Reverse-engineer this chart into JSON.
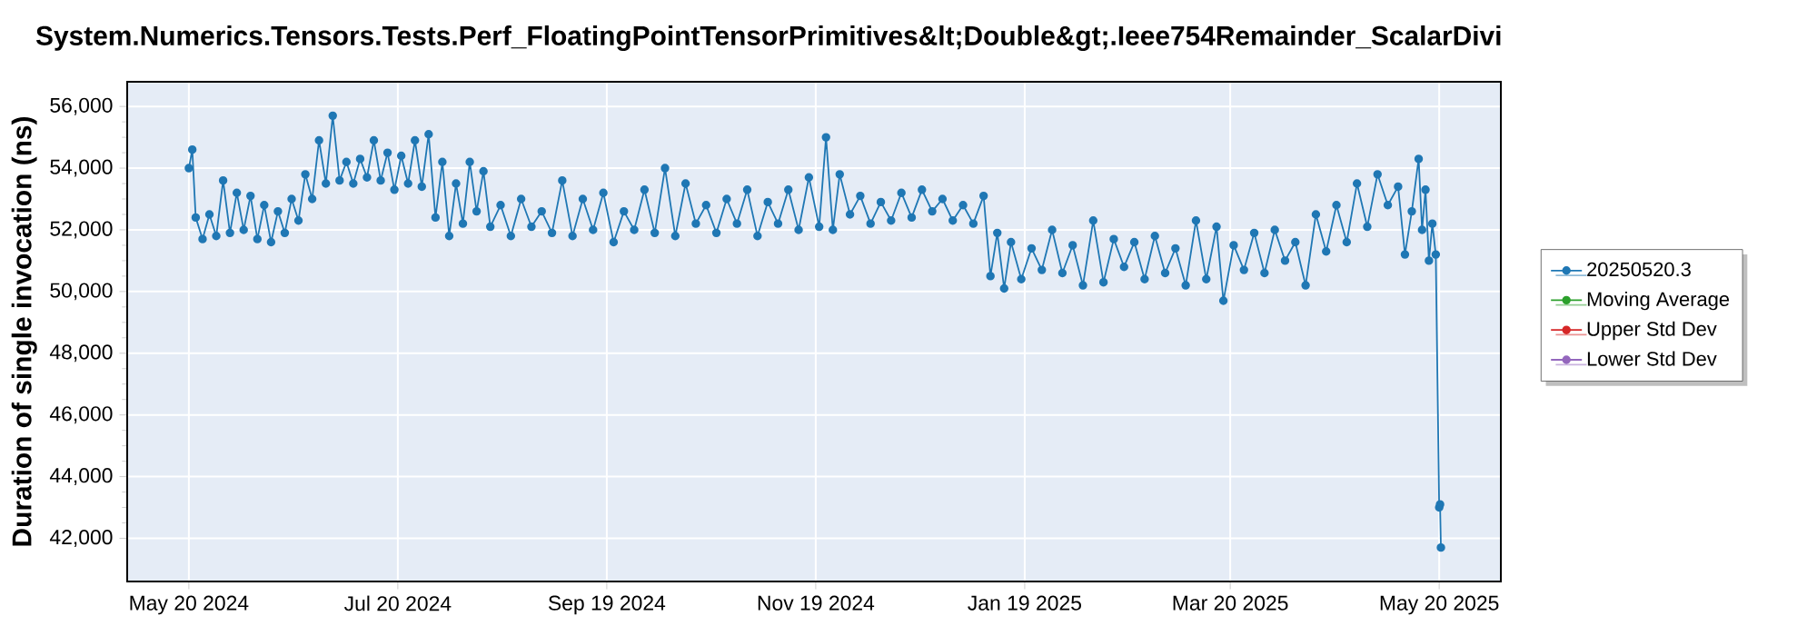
{
  "chart_data": {
    "type": "line",
    "title": "System.Numerics.Tensors.Tests.Perf_FloatingPointTensorPrimitives&lt;Double&gt;.Ieee754Remainder_ScalarDivi",
    "ylabel": "Duration of single invocation (ns)",
    "xlim": [
      "2024-05-02",
      "2025-06-07"
    ],
    "xticks": [
      {
        "value": "2024-05-20",
        "label": "May 20 2024"
      },
      {
        "value": "2024-07-20",
        "label": "Jul 20 2024"
      },
      {
        "value": "2024-09-19",
        "label": "Sep 19 2024"
      },
      {
        "value": "2024-11-19",
        "label": "Nov 19 2024"
      },
      {
        "value": "2025-01-19",
        "label": "Jan 19 2025"
      },
      {
        "value": "2025-03-20",
        "label": "Mar 20 2025"
      },
      {
        "value": "2025-05-20",
        "label": "May 20 2025"
      }
    ],
    "ylim": [
      40600,
      56800
    ],
    "yticks": [
      {
        "value": 42000,
        "label": "42,000"
      },
      {
        "value": 44000,
        "label": "44,000"
      },
      {
        "value": 46000,
        "label": "46,000"
      },
      {
        "value": 48000,
        "label": "48,000"
      },
      {
        "value": 50000,
        "label": "50,000"
      },
      {
        "value": 52000,
        "label": "52,000"
      },
      {
        "value": 54000,
        "label": "54,000"
      },
      {
        "value": 56000,
        "label": "56,000"
      }
    ],
    "grid": true,
    "legend": "right",
    "marker": "circle",
    "line_style": "solid",
    "series": [
      {
        "name": "20250520.3",
        "color": "#1f77b4",
        "x": [
          "2024-05-20",
          "2024-05-21",
          "2024-05-22",
          "2024-05-24",
          "2024-05-26",
          "2024-05-28",
          "2024-05-30",
          "2024-06-01",
          "2024-06-03",
          "2024-06-05",
          "2024-06-07",
          "2024-06-09",
          "2024-06-11",
          "2024-06-13",
          "2024-06-15",
          "2024-06-17",
          "2024-06-19",
          "2024-06-21",
          "2024-06-23",
          "2024-06-25",
          "2024-06-27",
          "2024-06-29",
          "2024-07-01",
          "2024-07-03",
          "2024-07-05",
          "2024-07-07",
          "2024-07-09",
          "2024-07-11",
          "2024-07-13",
          "2024-07-15",
          "2024-07-17",
          "2024-07-19",
          "2024-07-21",
          "2024-07-23",
          "2024-07-25",
          "2024-07-27",
          "2024-07-29",
          "2024-07-31",
          "2024-08-02",
          "2024-08-04",
          "2024-08-06",
          "2024-08-08",
          "2024-08-10",
          "2024-08-12",
          "2024-08-14",
          "2024-08-16",
          "2024-08-19",
          "2024-08-22",
          "2024-08-25",
          "2024-08-28",
          "2024-08-31",
          "2024-09-03",
          "2024-09-06",
          "2024-09-09",
          "2024-09-12",
          "2024-09-15",
          "2024-09-18",
          "2024-09-21",
          "2024-09-24",
          "2024-09-27",
          "2024-09-30",
          "2024-10-03",
          "2024-10-06",
          "2024-10-09",
          "2024-10-12",
          "2024-10-15",
          "2024-10-18",
          "2024-10-21",
          "2024-10-24",
          "2024-10-27",
          "2024-10-30",
          "2024-11-02",
          "2024-11-05",
          "2024-11-08",
          "2024-11-11",
          "2024-11-14",
          "2024-11-17",
          "2024-11-20",
          "2024-11-22",
          "2024-11-24",
          "2024-11-26",
          "2024-11-29",
          "2024-12-02",
          "2024-12-05",
          "2024-12-08",
          "2024-12-11",
          "2024-12-14",
          "2024-12-17",
          "2024-12-20",
          "2024-12-23",
          "2024-12-26",
          "2024-12-29",
          "2025-01-01",
          "2025-01-04",
          "2025-01-07",
          "2025-01-09",
          "2025-01-11",
          "2025-01-13",
          "2025-01-15",
          "2025-01-18",
          "2025-01-21",
          "2025-01-24",
          "2025-01-27",
          "2025-01-30",
          "2025-02-02",
          "2025-02-05",
          "2025-02-08",
          "2025-02-11",
          "2025-02-14",
          "2025-02-17",
          "2025-02-20",
          "2025-02-23",
          "2025-02-26",
          "2025-03-01",
          "2025-03-04",
          "2025-03-07",
          "2025-03-10",
          "2025-03-13",
          "2025-03-16",
          "2025-03-18",
          "2025-03-21",
          "2025-03-24",
          "2025-03-27",
          "2025-03-30",
          "2025-04-02",
          "2025-04-05",
          "2025-04-08",
          "2025-04-11",
          "2025-04-14",
          "2025-04-17",
          "2025-04-20",
          "2025-04-23",
          "2025-04-26",
          "2025-04-29",
          "2025-05-02",
          "2025-05-05",
          "2025-05-08",
          "2025-05-10",
          "2025-05-12",
          "2025-05-14",
          "2025-05-15",
          "2025-05-16",
          "2025-05-17",
          "2025-05-18",
          "2025-05-19",
          "2025-05-20",
          "2025-05-20T06:00",
          "2025-05-20T12:00"
        ],
        "values": [
          54000,
          54600,
          52400,
          51700,
          52500,
          51800,
          53600,
          51900,
          53200,
          52000,
          53100,
          51700,
          52800,
          51600,
          52600,
          51900,
          53000,
          52300,
          53800,
          53000,
          54900,
          53500,
          55700,
          53600,
          54200,
          53500,
          54300,
          53700,
          54900,
          53600,
          54500,
          53300,
          54400,
          53500,
          54900,
          53400,
          55100,
          52400,
          54200,
          51800,
          53500,
          52200,
          54200,
          52600,
          53900,
          52100,
          52800,
          51800,
          53000,
          52100,
          52600,
          51900,
          53600,
          51800,
          53000,
          52000,
          53200,
          51600,
          52600,
          52000,
          53300,
          51900,
          54000,
          51800,
          53500,
          52200,
          52800,
          51900,
          53000,
          52200,
          53300,
          51800,
          52900,
          52200,
          53300,
          52000,
          53700,
          52100,
          55000,
          52000,
          53800,
          52500,
          53100,
          52200,
          52900,
          52300,
          53200,
          52400,
          53300,
          52600,
          53000,
          52300,
          52800,
          52200,
          53100,
          50500,
          51900,
          50100,
          51600,
          50400,
          51400,
          50700,
          52000,
          50600,
          51500,
          50200,
          52300,
          50300,
          51700,
          50800,
          51600,
          50400,
          51800,
          50600,
          51400,
          50200,
          52300,
          50400,
          52100,
          49700,
          51500,
          50700,
          51900,
          50600,
          52000,
          51000,
          51600,
          50200,
          52500,
          51300,
          52800,
          51600,
          53500,
          52100,
          53800,
          52800,
          53400,
          51200,
          52600,
          54300,
          52000,
          53300,
          51000,
          52200,
          51200,
          43000,
          43100,
          41700
        ]
      },
      {
        "name": "Moving Average",
        "color": "#2ca02c"
      },
      {
        "name": "Upper Std Dev",
        "color": "#d62728"
      },
      {
        "name": "Lower Std Dev",
        "color": "#9467bd"
      }
    ]
  }
}
